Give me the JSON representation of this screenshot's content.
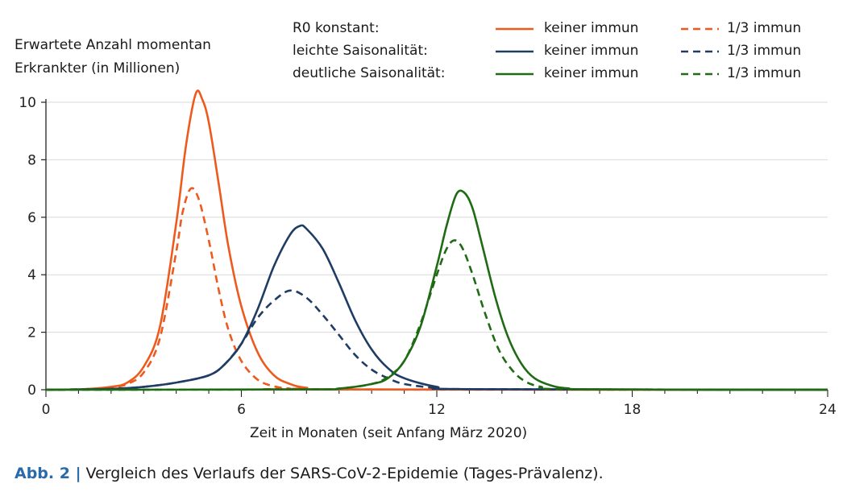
{
  "chart_data": {
    "type": "line",
    "ylabel": "Erwartete Anzahl momentan Erkrankter (in Millionen)",
    "ylabel_lines": [
      "Erwartete Anzahl momentan",
      "Erkrankter (in Millionen)"
    ],
    "xlabel": "Zeit in Monaten (seit Anfang März 2020)",
    "xlim": [
      0,
      24
    ],
    "ylim": [
      0,
      10
    ],
    "xticks": [
      "0",
      "6",
      "12",
      "18",
      "24"
    ],
    "yticks": [
      "0",
      "2",
      "4",
      "6",
      "8",
      "10"
    ],
    "grid": "horizontal",
    "legend_placement": "top",
    "legend_rows": [
      {
        "label": "R0 konstant:",
        "color": "#ee5a1e"
      },
      {
        "label": "leichte Saisonalität:",
        "color": "#1f3c64"
      },
      {
        "label": "deutliche Saisonalität:",
        "color": "#1f6b14"
      }
    ],
    "legend_solid": "keiner immun",
    "legend_dashed": "1/3 immun",
    "series": [
      {
        "name": "R0 konstant: keiner immun",
        "color": "#ee5a1e",
        "dash": false,
        "x": [
          0,
          1,
          2,
          2.5,
          3,
          3.5,
          4,
          4.3,
          4.6,
          4.8,
          5,
          5.3,
          5.6,
          6,
          6.5,
          7,
          7.5,
          8,
          9,
          24
        ],
        "y": [
          0,
          0.01,
          0.1,
          0.25,
          0.8,
          2.2,
          5.8,
          8.5,
          10.3,
          10.1,
          9.3,
          7.2,
          5.0,
          2.9,
          1.3,
          0.5,
          0.2,
          0.07,
          0.01,
          0
        ]
      },
      {
        "name": "R0 konstant: 1/3 immun",
        "color": "#ee5a1e",
        "dash": true,
        "x": [
          0,
          1,
          2,
          2.5,
          3,
          3.5,
          4,
          4.2,
          4.45,
          4.7,
          5,
          5.3,
          5.6,
          6,
          6.5,
          7,
          7.5,
          8,
          24
        ],
        "y": [
          0,
          0.01,
          0.08,
          0.2,
          0.6,
          1.8,
          4.8,
          6.2,
          7.0,
          6.6,
          5.2,
          3.5,
          2.1,
          1.0,
          0.35,
          0.12,
          0.04,
          0.01,
          0
        ]
      },
      {
        "name": "leichte Saisonalität: keiner immun",
        "color": "#1f3c64",
        "dash": false,
        "x": [
          0,
          2,
          3,
          4,
          5,
          5.5,
          6,
          6.5,
          7,
          7.5,
          7.8,
          8,
          8.5,
          9,
          9.5,
          10,
          10.5,
          11,
          12,
          13,
          24
        ],
        "y": [
          0,
          0.03,
          0.1,
          0.25,
          0.5,
          0.9,
          1.6,
          2.8,
          4.3,
          5.4,
          5.7,
          5.6,
          4.9,
          3.7,
          2.4,
          1.4,
          0.75,
          0.4,
          0.1,
          0.02,
          0
        ]
      },
      {
        "name": "leichte Saisonalität: 1/3 immun",
        "color": "#1f3c64",
        "dash": true,
        "x": [
          0,
          2,
          3,
          4,
          5,
          5.5,
          6,
          6.5,
          7,
          7.5,
          8,
          8.5,
          9,
          9.5,
          10,
          10.5,
          11,
          12,
          13,
          24
        ],
        "y": [
          0,
          0.03,
          0.1,
          0.25,
          0.5,
          0.9,
          1.6,
          2.5,
          3.1,
          3.45,
          3.2,
          2.6,
          1.9,
          1.2,
          0.7,
          0.4,
          0.2,
          0.06,
          0.02,
          0
        ]
      },
      {
        "name": "deutliche Saisonalität: keiner immun",
        "color": "#1f6b14",
        "dash": false,
        "x": [
          0,
          8,
          9,
          10,
          10.5,
          11,
          11.5,
          12,
          12.3,
          12.6,
          12.85,
          13.1,
          13.4,
          13.8,
          14.2,
          14.6,
          15,
          15.5,
          16,
          17,
          24
        ],
        "y": [
          0,
          0.01,
          0.04,
          0.2,
          0.4,
          1.0,
          2.2,
          4.3,
          5.7,
          6.8,
          6.85,
          6.3,
          5.0,
          3.2,
          1.8,
          0.9,
          0.4,
          0.15,
          0.05,
          0.01,
          0
        ]
      },
      {
        "name": "deutliche Saisonalität: 1/3 immun",
        "color": "#1f6b14",
        "dash": true,
        "x": [
          0,
          8,
          9,
          10,
          10.5,
          11,
          11.5,
          12,
          12.3,
          12.55,
          12.8,
          13.1,
          13.5,
          13.9,
          14.3,
          14.7,
          15.2,
          16,
          24
        ],
        "y": [
          0,
          0.01,
          0.04,
          0.2,
          0.45,
          1.0,
          2.3,
          4.0,
          4.9,
          5.2,
          4.9,
          4.0,
          2.6,
          1.4,
          0.7,
          0.3,
          0.1,
          0.02,
          0
        ]
      }
    ]
  },
  "caption": {
    "prefix": "Abb. 2 |",
    "text": " Vergleich des Verlaufs der SARS-CoV-2-Epidemie (Tages-Prävalenz)."
  }
}
